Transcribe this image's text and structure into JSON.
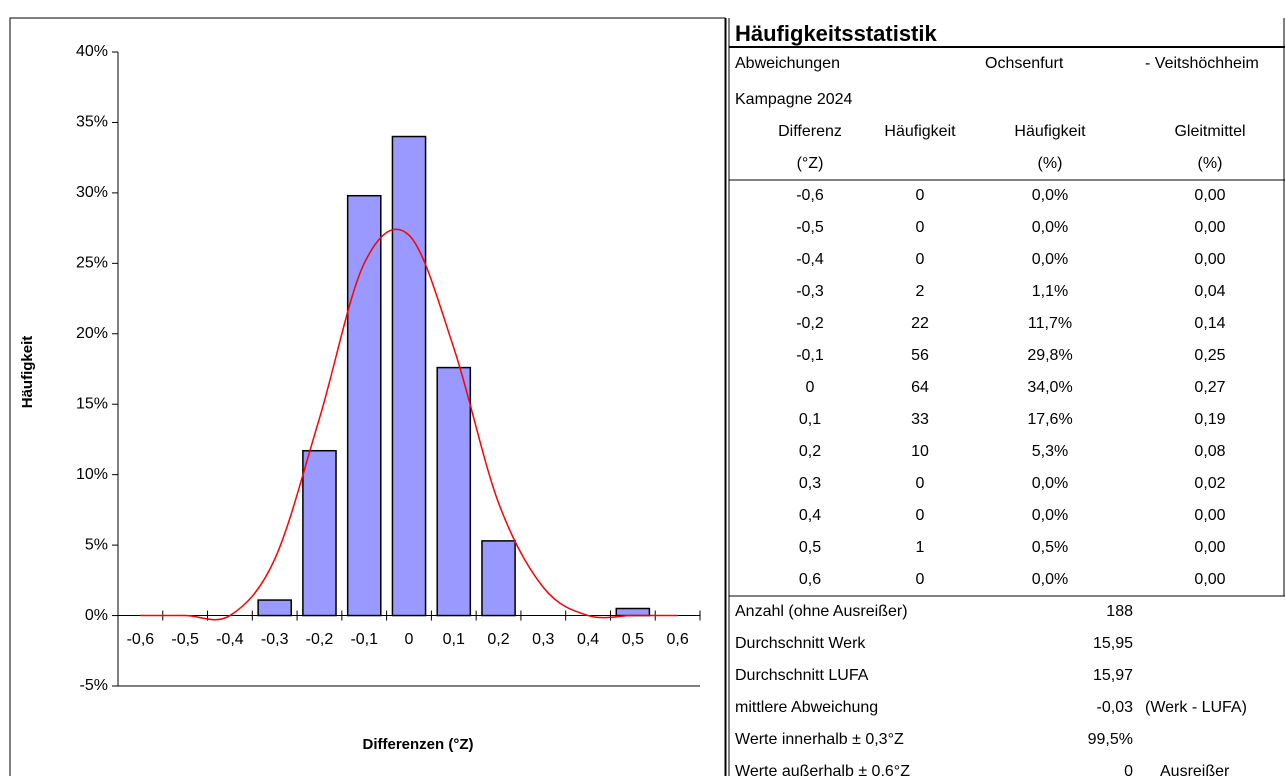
{
  "chart_data": {
    "type": "bar",
    "y_label": "Häufigkeit",
    "x_label": "Differenzen (°Z)",
    "categories": [
      "-0,6",
      "-0,5",
      "-0,4",
      "-0,3",
      "-0,2",
      "-0,1",
      "0",
      "0,1",
      "0,2",
      "0,3",
      "0,4",
      "0,5",
      "0,6"
    ],
    "series": [
      {
        "type": "bar",
        "color": "#9999ff",
        "values": [
          0,
          0,
          0,
          1.1,
          11.7,
          29.8,
          34.0,
          17.6,
          5.3,
          0,
          0,
          0.5,
          0
        ]
      },
      {
        "type": "line",
        "color": "#ff0000",
        "values": [
          0,
          0,
          0,
          4,
          14,
          25,
          27,
          19,
          8,
          2,
          0,
          0,
          0
        ]
      }
    ],
    "ylim": [
      -5,
      40
    ],
    "yticks": [
      {
        "value": -5,
        "label": "-5%"
      },
      {
        "value": 0,
        "label": "0%"
      },
      {
        "value": 5,
        "label": "5%"
      },
      {
        "value": 10,
        "label": "10%"
      },
      {
        "value": 15,
        "label": "15%"
      },
      {
        "value": 20,
        "label": "20%"
      },
      {
        "value": 25,
        "label": "25%"
      },
      {
        "value": 30,
        "label": "30%"
      },
      {
        "value": 35,
        "label": "35%"
      },
      {
        "value": 40,
        "label": "40%"
      }
    ]
  },
  "table": {
    "title": "Häufigkeitsstatistik",
    "header": [
      [
        "Abweichungen",
        "Ochsenfurt",
        "- Veitshöchheim"
      ],
      [
        "Kampagne 2024"
      ]
    ],
    "columns": [
      {
        "name": "Differenz",
        "unit": "(°Z)"
      },
      {
        "name": "Häufigkeit"
      },
      {
        "name": "Häufigkeit",
        "unit": "(%)"
      },
      {
        "name": "Gleitmittel",
        "unit": "(%)"
      }
    ],
    "rows": [
      [
        "-0,6",
        "0",
        "0,0%",
        "0,00"
      ],
      [
        "-0,5",
        "0",
        "0,0%",
        "0,00"
      ],
      [
        "-0,4",
        "0",
        "0,0%",
        "0,00"
      ],
      [
        "-0,3",
        "2",
        "1,1%",
        "0,04"
      ],
      [
        "-0,2",
        "22",
        "11,7%",
        "0,14"
      ],
      [
        "-0,1",
        "56",
        "29,8%",
        "0,25"
      ],
      [
        "0",
        "64",
        "34,0%",
        "0,27"
      ],
      [
        "0,1",
        "33",
        "17,6%",
        "0,19"
      ],
      [
        "0,2",
        "10",
        "5,3%",
        "0,08"
      ],
      [
        "0,3",
        "0",
        "0,0%",
        "0,02"
      ],
      [
        "0,4",
        "0",
        "0,0%",
        "0,00"
      ],
      [
        "0,5",
        "1",
        "0,5%",
        "0,00"
      ],
      [
        "0,6",
        "0",
        "0,0%",
        "0,00"
      ]
    ],
    "summary": [
      {
        "label": "Anzahl (ohne Ausreißer)",
        "value": "188"
      },
      {
        "label": "Durchschnitt Werk",
        "value": "15,95"
      },
      {
        "label": "Durchschnitt LUFA",
        "value": "15,97"
      },
      {
        "label": "mittlere Abweichung",
        "value": "-0,03",
        "note": "(Werk - LUFA)"
      },
      {
        "label": "Werte innerhalb ± 0,3°Z",
        "value": "99,5%"
      },
      {
        "label": "Werte außerhalb ± 0,6°Z",
        "value": "0",
        "note": "Ausreißer"
      }
    ]
  }
}
